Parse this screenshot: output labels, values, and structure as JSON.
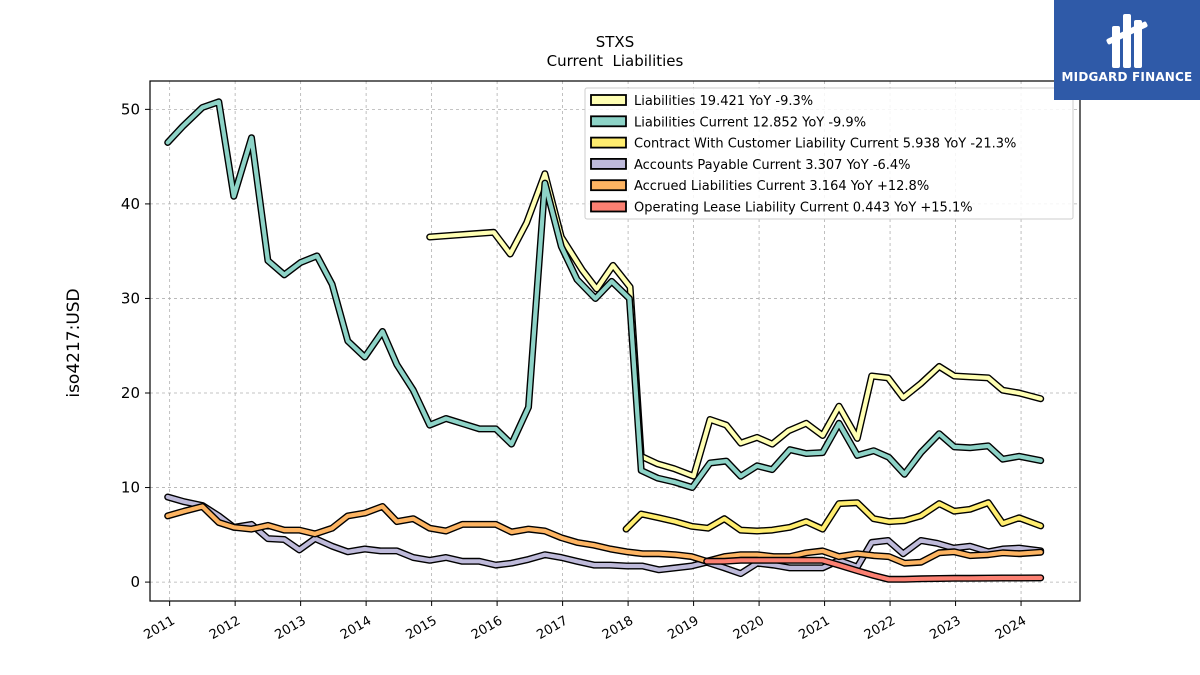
{
  "logo": {
    "text": "MIDGARD FINANCE",
    "background": "#2f5aa8"
  },
  "chart_data": {
    "type": "line",
    "title": "STXS",
    "subtitle": "Current  Liabilities",
    "ylabel": "iso4217:USD",
    "xlabel": "",
    "xlim": [
      2010.7,
      2024.9
    ],
    "ylim": [
      -2,
      53
    ],
    "xticks": [
      2011,
      2012,
      2013,
      2014,
      2015,
      2016,
      2017,
      2018,
      2019,
      2020,
      2021,
      2022,
      2023,
      2024
    ],
    "yticks": [
      0,
      10,
      20,
      30,
      40,
      50
    ],
    "grid": true,
    "legend_position": "top-right",
    "series": [
      {
        "name": "Liabilities",
        "legend": "Liabilities  19.421 YoY -9.3%",
        "color": "#ffffb3",
        "points": [
          [
            2014.97,
            36.5
          ],
          [
            2015.95,
            37.0
          ],
          [
            2016.2,
            34.7
          ],
          [
            2016.45,
            38.0
          ],
          [
            2016.73,
            43.2
          ],
          [
            2016.98,
            36.5
          ],
          [
            2017.3,
            33.0
          ],
          [
            2017.52,
            31.0
          ],
          [
            2017.77,
            33.5
          ],
          [
            2018.03,
            31.2
          ],
          [
            2018.2,
            13.3
          ],
          [
            2018.45,
            12.5
          ],
          [
            2018.7,
            12.0
          ],
          [
            2019.0,
            11.2
          ],
          [
            2019.25,
            17.2
          ],
          [
            2019.5,
            16.6
          ],
          [
            2019.72,
            14.7
          ],
          [
            2019.97,
            15.3
          ],
          [
            2020.2,
            14.6
          ],
          [
            2020.45,
            16.0
          ],
          [
            2020.72,
            16.8
          ],
          [
            2020.97,
            15.5
          ],
          [
            2021.22,
            18.6
          ],
          [
            2021.5,
            15.2
          ],
          [
            2021.72,
            21.8
          ],
          [
            2021.97,
            21.6
          ],
          [
            2022.2,
            19.5
          ],
          [
            2022.47,
            21.0
          ],
          [
            2022.75,
            22.8
          ],
          [
            2022.98,
            21.8
          ],
          [
            2023.22,
            21.7
          ],
          [
            2023.5,
            21.6
          ],
          [
            2023.72,
            20.3
          ],
          [
            2023.97,
            20.0
          ],
          [
            2024.3,
            19.4
          ]
        ]
      },
      {
        "name": "Liabilities Current",
        "legend": "Liabilities Current  12.852 YoY -9.9%",
        "color": "#8dd3c7",
        "points": [
          [
            2010.97,
            46.5
          ],
          [
            2011.2,
            48.2
          ],
          [
            2011.5,
            50.2
          ],
          [
            2011.75,
            50.8
          ],
          [
            2011.98,
            40.8
          ],
          [
            2012.25,
            47.0
          ],
          [
            2012.5,
            34.0
          ],
          [
            2012.75,
            32.5
          ],
          [
            2013.0,
            33.8
          ],
          [
            2013.25,
            34.5
          ],
          [
            2013.48,
            31.5
          ],
          [
            2013.72,
            25.5
          ],
          [
            2013.98,
            23.8
          ],
          [
            2014.25,
            26.5
          ],
          [
            2014.47,
            23.0
          ],
          [
            2014.72,
            20.3
          ],
          [
            2014.97,
            16.6
          ],
          [
            2015.22,
            17.3
          ],
          [
            2015.5,
            16.7
          ],
          [
            2015.73,
            16.2
          ],
          [
            2015.98,
            16.2
          ],
          [
            2016.22,
            14.6
          ],
          [
            2016.48,
            18.5
          ],
          [
            2016.73,
            42.2
          ],
          [
            2016.98,
            35.5
          ],
          [
            2017.22,
            32.0
          ],
          [
            2017.5,
            30.0
          ],
          [
            2017.75,
            31.8
          ],
          [
            2018.02,
            30.0
          ],
          [
            2018.2,
            11.8
          ],
          [
            2018.45,
            11.0
          ],
          [
            2018.7,
            10.6
          ],
          [
            2018.98,
            10.0
          ],
          [
            2019.25,
            12.6
          ],
          [
            2019.5,
            12.8
          ],
          [
            2019.72,
            11.2
          ],
          [
            2019.97,
            12.3
          ],
          [
            2020.2,
            11.9
          ],
          [
            2020.47,
            14.0
          ],
          [
            2020.72,
            13.6
          ],
          [
            2020.97,
            13.7
          ],
          [
            2021.22,
            16.8
          ],
          [
            2021.5,
            13.4
          ],
          [
            2021.75,
            13.9
          ],
          [
            2021.98,
            13.2
          ],
          [
            2022.22,
            11.4
          ],
          [
            2022.47,
            13.7
          ],
          [
            2022.75,
            15.7
          ],
          [
            2022.98,
            14.3
          ],
          [
            2023.22,
            14.2
          ],
          [
            2023.5,
            14.4
          ],
          [
            2023.72,
            13.0
          ],
          [
            2023.97,
            13.3
          ],
          [
            2024.3,
            12.85
          ]
        ]
      },
      {
        "name": "Contract With Customer Liability Current",
        "legend": "Contract With Customer Liability Current  5.938 YoY -21.3%",
        "color": "#ffed6f",
        "points": [
          [
            2017.97,
            5.6
          ],
          [
            2018.2,
            7.2
          ],
          [
            2018.47,
            6.8
          ],
          [
            2018.72,
            6.4
          ],
          [
            2018.97,
            5.9
          ],
          [
            2019.22,
            5.7
          ],
          [
            2019.47,
            6.7
          ],
          [
            2019.72,
            5.5
          ],
          [
            2019.97,
            5.4
          ],
          [
            2020.2,
            5.5
          ],
          [
            2020.47,
            5.8
          ],
          [
            2020.72,
            6.4
          ],
          [
            2020.97,
            5.6
          ],
          [
            2021.22,
            8.3
          ],
          [
            2021.5,
            8.4
          ],
          [
            2021.75,
            6.7
          ],
          [
            2021.98,
            6.4
          ],
          [
            2022.22,
            6.5
          ],
          [
            2022.47,
            7.0
          ],
          [
            2022.75,
            8.3
          ],
          [
            2022.98,
            7.5
          ],
          [
            2023.22,
            7.7
          ],
          [
            2023.5,
            8.4
          ],
          [
            2023.72,
            6.2
          ],
          [
            2023.97,
            6.8
          ],
          [
            2024.3,
            5.94
          ]
        ]
      },
      {
        "name": "Accounts Payable Current",
        "legend": "Accounts Payable Current  3.307 YoY -6.4%",
        "color": "#bebada",
        "points": [
          [
            2010.97,
            9.0
          ],
          [
            2011.22,
            8.5
          ],
          [
            2011.5,
            8.1
          ],
          [
            2011.75,
            7.0
          ],
          [
            2011.98,
            5.8
          ],
          [
            2012.25,
            6.1
          ],
          [
            2012.5,
            4.6
          ],
          [
            2012.75,
            4.5
          ],
          [
            2012.98,
            3.4
          ],
          [
            2013.22,
            4.6
          ],
          [
            2013.48,
            3.8
          ],
          [
            2013.72,
            3.2
          ],
          [
            2013.98,
            3.5
          ],
          [
            2014.22,
            3.3
          ],
          [
            2014.47,
            3.3
          ],
          [
            2014.72,
            2.6
          ],
          [
            2014.97,
            2.3
          ],
          [
            2015.22,
            2.6
          ],
          [
            2015.47,
            2.2
          ],
          [
            2015.73,
            2.2
          ],
          [
            2015.98,
            1.8
          ],
          [
            2016.22,
            2.0
          ],
          [
            2016.48,
            2.4
          ],
          [
            2016.73,
            2.9
          ],
          [
            2016.98,
            2.6
          ],
          [
            2017.22,
            2.2
          ],
          [
            2017.48,
            1.8
          ],
          [
            2017.73,
            1.8
          ],
          [
            2017.98,
            1.7
          ],
          [
            2018.22,
            1.7
          ],
          [
            2018.47,
            1.3
          ],
          [
            2018.72,
            1.5
          ],
          [
            2018.97,
            1.7
          ],
          [
            2019.2,
            2.1
          ],
          [
            2019.47,
            1.5
          ],
          [
            2019.72,
            0.9
          ],
          [
            2019.97,
            2.0
          ],
          [
            2020.22,
            1.8
          ],
          [
            2020.47,
            1.5
          ],
          [
            2020.72,
            1.5
          ],
          [
            2020.97,
            1.5
          ],
          [
            2021.22,
            2.3
          ],
          [
            2021.5,
            1.6
          ],
          [
            2021.72,
            4.2
          ],
          [
            2021.97,
            4.4
          ],
          [
            2022.2,
            3.0
          ],
          [
            2022.47,
            4.4
          ],
          [
            2022.72,
            4.1
          ],
          [
            2022.97,
            3.6
          ],
          [
            2023.22,
            3.8
          ],
          [
            2023.5,
            3.2
          ],
          [
            2023.72,
            3.5
          ],
          [
            2023.97,
            3.6
          ],
          [
            2024.3,
            3.31
          ]
        ]
      },
      {
        "name": "Accrued Liabilities Current",
        "legend": "Accrued Liabilities Current  3.164 YoY +12.8%",
        "color": "#fdb462",
        "points": [
          [
            2010.97,
            7.0
          ],
          [
            2011.22,
            7.5
          ],
          [
            2011.5,
            8.0
          ],
          [
            2011.75,
            6.3
          ],
          [
            2011.98,
            5.8
          ],
          [
            2012.25,
            5.6
          ],
          [
            2012.5,
            6.0
          ],
          [
            2012.75,
            5.5
          ],
          [
            2012.98,
            5.5
          ],
          [
            2013.22,
            5.1
          ],
          [
            2013.48,
            5.7
          ],
          [
            2013.72,
            7.0
          ],
          [
            2013.98,
            7.3
          ],
          [
            2014.25,
            8.0
          ],
          [
            2014.47,
            6.4
          ],
          [
            2014.72,
            6.7
          ],
          [
            2014.97,
            5.7
          ],
          [
            2015.22,
            5.4
          ],
          [
            2015.47,
            6.1
          ],
          [
            2015.73,
            6.1
          ],
          [
            2015.98,
            6.1
          ],
          [
            2016.22,
            5.3
          ],
          [
            2016.48,
            5.6
          ],
          [
            2016.73,
            5.4
          ],
          [
            2016.98,
            4.7
          ],
          [
            2017.22,
            4.2
          ],
          [
            2017.48,
            3.9
          ],
          [
            2017.73,
            3.5
          ],
          [
            2017.98,
            3.2
          ],
          [
            2018.22,
            3.0
          ],
          [
            2018.47,
            3.0
          ],
          [
            2018.72,
            2.9
          ],
          [
            2018.97,
            2.7
          ],
          [
            2019.2,
            2.2
          ],
          [
            2019.47,
            2.7
          ],
          [
            2019.72,
            2.9
          ],
          [
            2019.97,
            2.9
          ],
          [
            2020.22,
            2.7
          ],
          [
            2020.47,
            2.7
          ],
          [
            2020.72,
            3.1
          ],
          [
            2020.97,
            3.3
          ],
          [
            2021.22,
            2.7
          ],
          [
            2021.5,
            3.0
          ],
          [
            2021.75,
            2.8
          ],
          [
            2021.98,
            2.7
          ],
          [
            2022.22,
            2.0
          ],
          [
            2022.47,
            2.1
          ],
          [
            2022.75,
            3.1
          ],
          [
            2022.98,
            3.2
          ],
          [
            2023.22,
            2.8
          ],
          [
            2023.5,
            2.9
          ],
          [
            2023.72,
            3.1
          ],
          [
            2023.97,
            3.0
          ],
          [
            2024.3,
            3.16
          ]
        ]
      },
      {
        "name": "Operating Lease Liability Current",
        "legend": "Operating Lease Liability Current  0.443 YoY +15.1%",
        "color": "#fb8072",
        "points": [
          [
            2019.2,
            2.2
          ],
          [
            2019.47,
            2.2
          ],
          [
            2019.72,
            2.3
          ],
          [
            2019.97,
            2.3
          ],
          [
            2020.22,
            2.3
          ],
          [
            2020.47,
            2.3
          ],
          [
            2020.72,
            2.3
          ],
          [
            2020.97,
            2.3
          ],
          [
            2021.22,
            1.8
          ],
          [
            2021.5,
            1.2
          ],
          [
            2021.75,
            0.7
          ],
          [
            2021.98,
            0.3
          ],
          [
            2022.22,
            0.3
          ],
          [
            2022.47,
            0.35
          ],
          [
            2022.75,
            0.38
          ],
          [
            2022.98,
            0.4
          ],
          [
            2023.22,
            0.4
          ],
          [
            2023.5,
            0.42
          ],
          [
            2023.72,
            0.43
          ],
          [
            2023.97,
            0.43
          ],
          [
            2024.3,
            0.44
          ]
        ]
      }
    ]
  }
}
